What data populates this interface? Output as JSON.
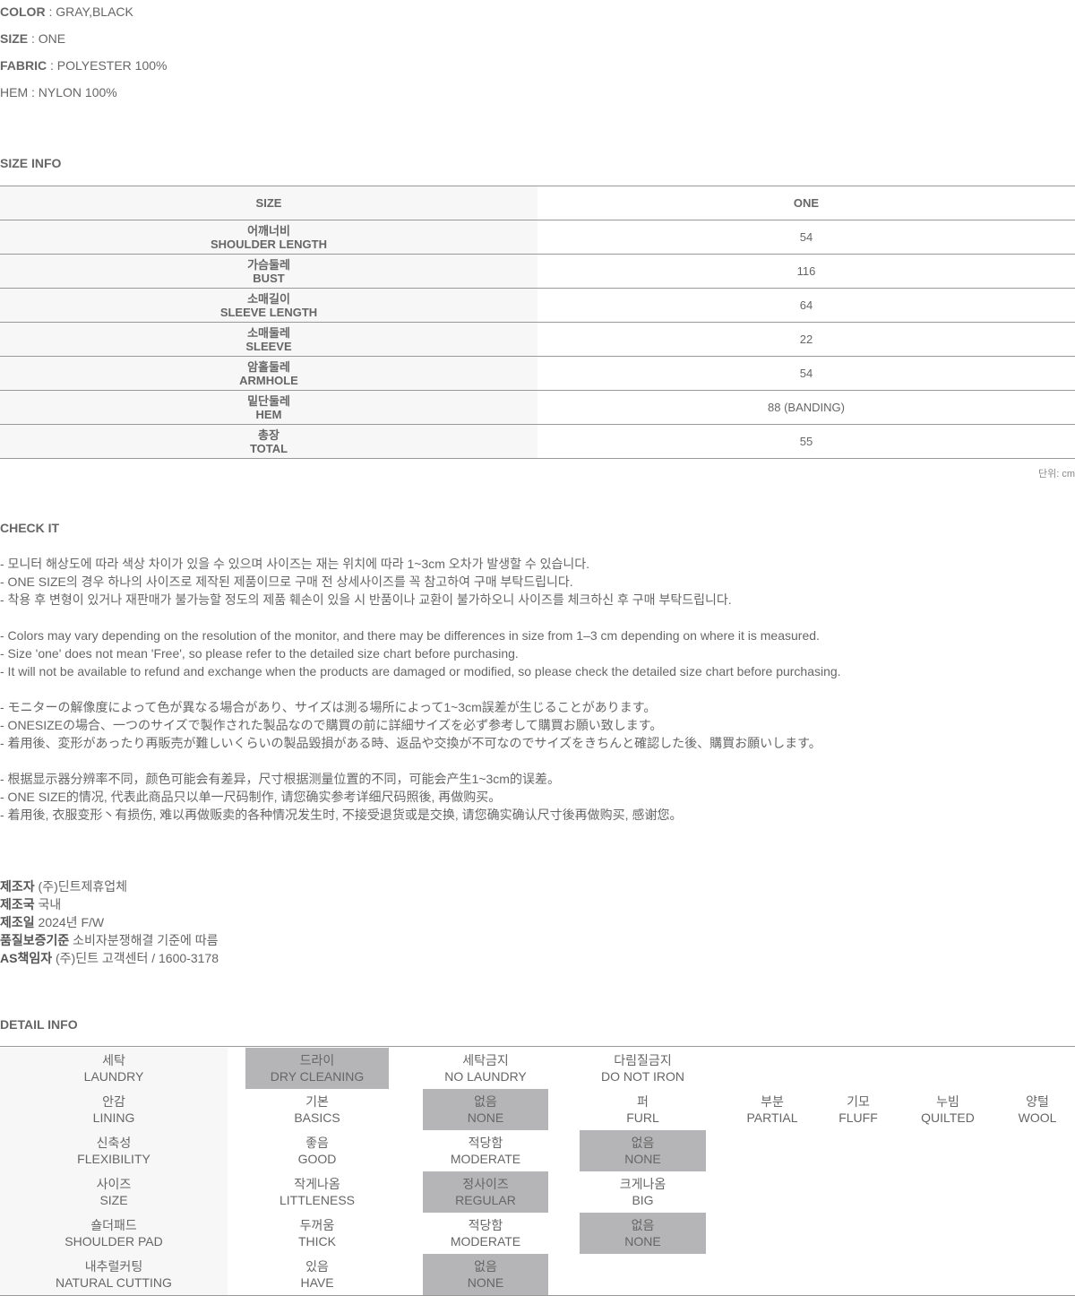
{
  "specs": [
    {
      "label": "COLOR",
      "value": " : GRAY,BLACK"
    },
    {
      "label": "SIZE",
      "value": " : ONE"
    },
    {
      "label": "FABRIC",
      "value": " : POLYESTER 100%"
    },
    {
      "label": "",
      "value": "HEM : NYLON 100%"
    }
  ],
  "size_info": {
    "title": "SIZE INFO",
    "header": [
      "SIZE",
      "ONE"
    ],
    "rows": [
      {
        "ko": "어깨너비",
        "en": "SHOULDER LENGTH",
        "value": "54"
      },
      {
        "ko": "가슴둘레",
        "en": "BUST",
        "value": "116"
      },
      {
        "ko": "소매길이",
        "en": "SLEEVE LENGTH",
        "value": "64"
      },
      {
        "ko": "소매둘레",
        "en": "SLEEVE",
        "value": "22"
      },
      {
        "ko": "암홀둘레",
        "en": "ARMHOLE",
        "value": "54"
      },
      {
        "ko": "밑단둘레",
        "en": "HEM",
        "value": "88 (BANDING)"
      },
      {
        "ko": "총장",
        "en": "TOTAL",
        "value": "55"
      }
    ],
    "unit": "단위: cm"
  },
  "check_it": {
    "title": "CHECK IT",
    "lines": [
      "- 모니터 해상도에 따라 색상 차이가 있을 수 있으며 사이즈는 재는 위치에 따라 1~3cm 오차가 발생할 수 있습니다.",
      "- ONE SIZE의 경우 하나의 사이즈로 제작된 제품이므로 구매 전 상세사이즈를 꼭 참고하여 구매 부탁드립니다.",
      "- 착용 후 변형이 있거나 재판매가 불가능할 정도의 제품 훼손이 있을 시 반품이나 교환이 불가하오니 사이즈를 체크하신 후 구매 부탁드립니다.",
      "",
      "- Colors may vary depending on the resolution of the monitor, and there may be differences in size from 1–3 cm depending on where it is measured.",
      "- Size 'one' does not mean 'Free', so please refer to the detailed size chart before purchasing.",
      "- It will not be available to refund and exchange when the products are damaged or modified, so please check the detailed size chart before purchasing.",
      "",
      "- モニターの解像度によって色が異なる場合があり、サイズは測る場所によって1~3cm誤差が生じることがあります。",
      "- ONESIZEの場合、一つのサイズで製作された製品なので購買の前に詳細サイズを必ず参考して購買お願い致します。",
      "- 着用後、変形があったり再販売が難しいくらいの製品毀損がある時、返品や交換が不可なのでサイズをきちんと確認した後、購買お願いします。",
      "",
      "- 根据显示器分辨率不同，颜色可能会有差异，尺寸根据测量位置的不同，可能会产生1~3cm的误差。",
      "- ONE SIZE的情况, 代表此商品只以单一尺码制作, 请您确实参考详细尺码照後, 再做购买。",
      "- 着用後, 衣服变形丶有损伤, 难以再做贩卖的各种情况发生时, 不接受退货或是交换, 请您确实确认尺寸後再做购买, 感谢您。"
    ]
  },
  "maker": [
    {
      "label": "제조자",
      "value": " (주)딘트제휴업체"
    },
    {
      "label": "제조국",
      "value": " 국내"
    },
    {
      "label": "제조일",
      "value": " 2024년 F/W"
    },
    {
      "label": "품질보증기준",
      "value": " 소비자분쟁해결 기준에 따름"
    },
    {
      "label": "AS책임자",
      "value": " (주)딘트 고객센터 / 1600-3178"
    }
  ],
  "detail_info": {
    "title": "DETAIL INFO",
    "highlight_color": "#b5b4b6",
    "rows": [
      {
        "label": {
          "ko": "세탁",
          "en": "LAUNDRY"
        },
        "options": [
          {
            "ko": "드라이",
            "en": "DRY CLEANING",
            "selected": true
          },
          {
            "ko": "세탁금지",
            "en": "NO LAUNDRY",
            "selected": false
          },
          {
            "ko": "다림질금지",
            "en": "DO NOT IRON",
            "selected": false
          }
        ]
      },
      {
        "label": {
          "ko": "안감",
          "en": "LINING"
        },
        "options": [
          {
            "ko": "기본",
            "en": "BASICS",
            "selected": false
          },
          {
            "ko": "없음",
            "en": "NONE",
            "selected": true
          },
          {
            "ko": "퍼",
            "en": "FURL",
            "selected": false
          },
          {
            "ko": "부분",
            "en": "PARTIAL",
            "selected": false
          },
          {
            "ko": "기모",
            "en": "FLUFF",
            "selected": false
          },
          {
            "ko": "누빔",
            "en": "QUILTED",
            "selected": false
          },
          {
            "ko": "양털",
            "en": "WOOL",
            "selected": false
          }
        ]
      },
      {
        "label": {
          "ko": "신축성",
          "en": "FLEXIBILITY"
        },
        "options": [
          {
            "ko": "좋음",
            "en": "GOOD",
            "selected": false
          },
          {
            "ko": "적당함",
            "en": "MODERATE",
            "selected": false
          },
          {
            "ko": "없음",
            "en": "NONE",
            "selected": true
          }
        ]
      },
      {
        "label": {
          "ko": "사이즈",
          "en": "SIZE"
        },
        "options": [
          {
            "ko": "작게나옴",
            "en": "LITTLENESS",
            "selected": false
          },
          {
            "ko": "정사이즈",
            "en": "REGULAR",
            "selected": true
          },
          {
            "ko": "크게나옴",
            "en": "BIG",
            "selected": false
          }
        ]
      },
      {
        "label": {
          "ko": "숄더패드",
          "en": "SHOULDER PAD"
        },
        "options": [
          {
            "ko": "두꺼움",
            "en": "THICK",
            "selected": false
          },
          {
            "ko": "적당함",
            "en": "MODERATE",
            "selected": false
          },
          {
            "ko": "없음",
            "en": "NONE",
            "selected": true
          }
        ]
      },
      {
        "label": {
          "ko": "내추럴커팅",
          "en": "NATURAL CUTTING"
        },
        "options": [
          {
            "ko": "있음",
            "en": "HAVE",
            "selected": false
          },
          {
            "ko": "없음",
            "en": "NONE",
            "selected": true
          }
        ]
      }
    ]
  }
}
